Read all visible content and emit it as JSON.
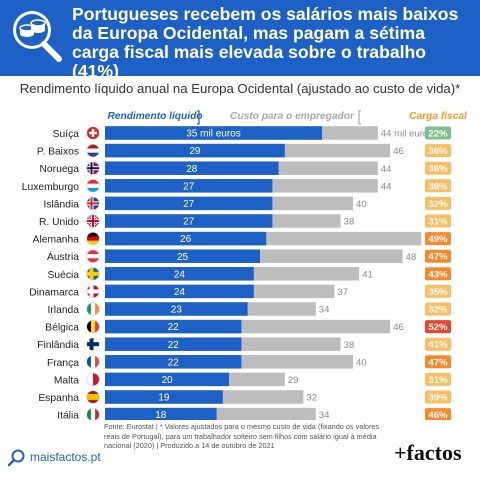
{
  "header": {
    "title": "Portugueses recebem os salários mais baixos da Europa Ocidental, mas pagam a sétima carga fiscal mais elevada sobre o trabalho (41%)",
    "icon": "coins-magnifier-icon",
    "bg_color": "#1d61c6"
  },
  "subtitle": "Rendimento líquido anual na Europa Ocidental (ajustado ao custo de vida)*",
  "footer": {
    "brand": "maisfactos.pt",
    "source": "Fonte: Eurostat | * Valores ajustados para o mesmo custo de vida (fixando os valores reais de Portugal), para um trabalhador solteiro sem filhos com salário igual à média nacional (2020) | Produzido a 14 de outubro de 2021",
    "logo": "+factos"
  },
  "chart_data": {
    "type": "bar",
    "legend": {
      "net": "Rendimento líquido",
      "cost": "Custo para o empregador",
      "tax": "Carga fiscal"
    },
    "first_net_label": "35 mil euros",
    "first_cost_label": "44 mil euros",
    "categories": [
      "Suíça",
      "P. Baixos",
      "Noruega",
      "Luxemburgo",
      "Islândia",
      "R. Unido",
      "Alemanha",
      "Áustria",
      "Suécia",
      "Dinamarca",
      "Irlanda",
      "Bélgica",
      "Finlândia",
      "França",
      "Malta",
      "Espanha",
      "Itália",
      "Grécia",
      "Portugal"
    ],
    "series": [
      {
        "name": "Rendimento líquido",
        "color": "#1d61c6",
        "highlight_color": "#d0201c",
        "values": [
          35,
          29,
          28,
          27,
          27,
          27,
          26,
          25,
          24,
          24,
          23,
          22,
          22,
          22,
          20,
          19,
          18,
          16,
          14
        ]
      },
      {
        "name": "Custo para o empregador",
        "color": "#bdbdbd",
        "values": [
          44,
          46,
          44,
          44,
          40,
          38,
          51,
          48,
          41,
          37,
          34,
          46,
          38,
          40,
          29,
          32,
          34,
          27,
          24
        ]
      }
    ],
    "tax_rates": [
      "22%",
      "36%",
      "36%",
      "38%",
      "32%",
      "31%",
      "49%",
      "47%",
      "43%",
      "35%",
      "32%",
      "52%",
      "41%",
      "47%",
      "31%",
      "39%",
      "46%",
      "40%",
      "41%"
    ],
    "highlight_category": "Portugal",
    "xlim": [
      0,
      53
    ],
    "colors": {
      "net": "#1d61c6",
      "cost": "#bdbdbd",
      "tax_label": "#f59a23",
      "portugal": "#d0201c",
      "tax_low": "#7cc28c",
      "tax_mid": "#fbbd62",
      "tax_high": "#f5892c",
      "tax_top": "#e8452c"
    },
    "flags": {
      "Suíça": {
        "type": "swiss"
      },
      "P. Baixos": {
        "type": "h",
        "colors": [
          "#ae1c28",
          "#ffffff",
          "#21468b"
        ]
      },
      "Noruega": {
        "type": "nordic",
        "colors": [
          "#ba0c2f",
          "#ffffff",
          "#00205b"
        ]
      },
      "Luxemburgo": {
        "type": "h",
        "colors": [
          "#ed2939",
          "#ffffff",
          "#00a1de"
        ]
      },
      "Islândia": {
        "type": "nordic",
        "colors": [
          "#02529c",
          "#ffffff",
          "#dc1e35"
        ]
      },
      "R. Unido": {
        "type": "uk"
      },
      "Alemanha": {
        "type": "h",
        "colors": [
          "#000000",
          "#dd0000",
          "#ffce00"
        ]
      },
      "Áustria": {
        "type": "h",
        "colors": [
          "#ed2939",
          "#ffffff",
          "#ed2939"
        ]
      },
      "Suécia": {
        "type": "nordic",
        "colors": [
          "#006aa7",
          "#fecc00",
          "#fecc00"
        ]
      },
      "Dinamarca": {
        "type": "nordic",
        "colors": [
          "#c8102e",
          "#ffffff",
          "#ffffff"
        ]
      },
      "Irlanda": {
        "type": "v",
        "colors": [
          "#169b62",
          "#ffffff",
          "#ff883e"
        ]
      },
      "Bélgica": {
        "type": "v",
        "colors": [
          "#000000",
          "#fdda24",
          "#ef3340"
        ]
      },
      "Finlândia": {
        "type": "nordic",
        "colors": [
          "#ffffff",
          "#002f6c",
          "#002f6c"
        ]
      },
      "França": {
        "type": "v",
        "colors": [
          "#0055a4",
          "#ffffff",
          "#ef4135"
        ]
      },
      "Malta": {
        "type": "v2",
        "colors": [
          "#ffffff",
          "#cf142b"
        ]
      },
      "Espanha": {
        "type": "spain"
      },
      "Itália": {
        "type": "v",
        "colors": [
          "#009246",
          "#ffffff",
          "#ce2b37"
        ]
      },
      "Grécia": {
        "type": "greece"
      },
      "Portugal": {
        "type": "portugal"
      }
    }
  }
}
